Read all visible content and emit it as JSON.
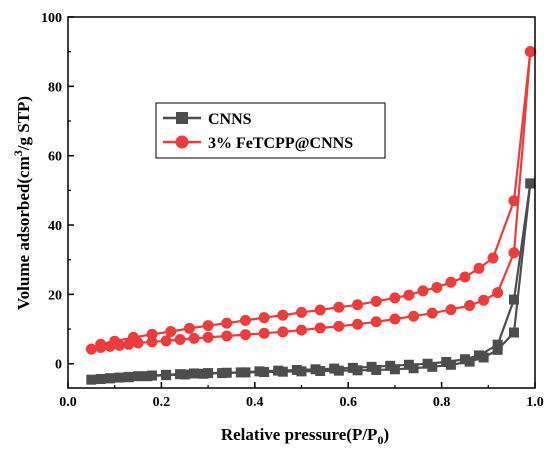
{
  "chart_data": {
    "type": "line",
    "xlabel": "Relative pressure(P/P0)",
    "ylabel": "Volume adsorbed(cm3/g STP)",
    "xlim": [
      0.0,
      1.0
    ],
    "ylim": [
      -7,
      100
    ],
    "x_ticks": [
      "0.0",
      "0.2",
      "0.4",
      "0.6",
      "0.8",
      "1.0"
    ],
    "y_ticks": [
      "0",
      "20",
      "40",
      "60",
      "80",
      "100"
    ],
    "grid": false,
    "legend_position": "upper-left",
    "series": [
      {
        "name": "CNNS",
        "color": "#4d4d4d",
        "marker": "square",
        "adsorption": [
          [
            0.05,
            -4.6
          ],
          [
            0.07,
            -4.4
          ],
          [
            0.09,
            -4.2
          ],
          [
            0.11,
            -4.0
          ],
          [
            0.13,
            -3.8
          ],
          [
            0.15,
            -3.6
          ],
          [
            0.18,
            -3.4
          ],
          [
            0.21,
            -3.2
          ],
          [
            0.24,
            -3.0
          ],
          [
            0.27,
            -2.8
          ],
          [
            0.3,
            -2.7
          ],
          [
            0.34,
            -2.6
          ],
          [
            0.38,
            -2.5
          ],
          [
            0.42,
            -2.4
          ],
          [
            0.46,
            -2.3
          ],
          [
            0.5,
            -2.2
          ],
          [
            0.54,
            -2.1
          ],
          [
            0.58,
            -2.0
          ],
          [
            0.62,
            -1.9
          ],
          [
            0.66,
            -1.8
          ],
          [
            0.7,
            -1.6
          ],
          [
            0.74,
            -1.3
          ],
          [
            0.78,
            -0.9
          ],
          [
            0.82,
            -0.3
          ],
          [
            0.86,
            0.6
          ],
          [
            0.89,
            1.8
          ],
          [
            0.92,
            4.0
          ],
          [
            0.955,
            9.0
          ],
          [
            0.99,
            52.0
          ]
        ],
        "desorption": [
          [
            0.99,
            52.0
          ],
          [
            0.955,
            18.5
          ],
          [
            0.92,
            5.5
          ],
          [
            0.88,
            2.4
          ],
          [
            0.85,
            1.3
          ],
          [
            0.81,
            0.5
          ],
          [
            0.77,
            0.0
          ],
          [
            0.73,
            -0.3
          ],
          [
            0.69,
            -0.6
          ],
          [
            0.65,
            -0.9
          ],
          [
            0.61,
            -1.2
          ],
          [
            0.57,
            -1.4
          ],
          [
            0.53,
            -1.6
          ],
          [
            0.49,
            -1.8
          ],
          [
            0.45,
            -2.0
          ],
          [
            0.41,
            -2.2
          ],
          [
            0.37,
            -2.5
          ],
          [
            0.33,
            -2.7
          ],
          [
            0.29,
            -2.9
          ],
          [
            0.25,
            -3.1
          ],
          [
            0.21,
            -3.3
          ],
          [
            0.17,
            -3.6
          ],
          [
            0.13,
            -3.9
          ],
          [
            0.09,
            -4.2
          ]
        ]
      },
      {
        "name": "3% FeTCPP@CNNS",
        "color": "#ee3b3b",
        "marker": "circle",
        "adsorption": [
          [
            0.05,
            4.2
          ],
          [
            0.07,
            4.7
          ],
          [
            0.09,
            5.0
          ],
          [
            0.11,
            5.3
          ],
          [
            0.13,
            5.6
          ],
          [
            0.15,
            6.0
          ],
          [
            0.18,
            6.3
          ],
          [
            0.21,
            6.6
          ],
          [
            0.24,
            7.0
          ],
          [
            0.27,
            7.3
          ],
          [
            0.3,
            7.6
          ],
          [
            0.34,
            8.0
          ],
          [
            0.38,
            8.4
          ],
          [
            0.42,
            8.8
          ],
          [
            0.46,
            9.2
          ],
          [
            0.5,
            9.7
          ],
          [
            0.54,
            10.3
          ],
          [
            0.58,
            10.8
          ],
          [
            0.62,
            11.4
          ],
          [
            0.66,
            12.1
          ],
          [
            0.7,
            12.9
          ],
          [
            0.74,
            13.7
          ],
          [
            0.78,
            14.6
          ],
          [
            0.82,
            15.6
          ],
          [
            0.86,
            16.8
          ],
          [
            0.89,
            18.3
          ],
          [
            0.92,
            20.5
          ],
          [
            0.955,
            32.0
          ],
          [
            0.99,
            90.0
          ]
        ],
        "desorption": [
          [
            0.99,
            90.0
          ],
          [
            0.955,
            47.0
          ],
          [
            0.91,
            30.5
          ],
          [
            0.88,
            27.5
          ],
          [
            0.85,
            25.0
          ],
          [
            0.82,
            23.5
          ],
          [
            0.79,
            22.0
          ],
          [
            0.76,
            21.0
          ],
          [
            0.73,
            19.8
          ],
          [
            0.7,
            19.0
          ],
          [
            0.66,
            18.0
          ],
          [
            0.62,
            17.0
          ],
          [
            0.58,
            16.3
          ],
          [
            0.54,
            15.5
          ],
          [
            0.5,
            14.8
          ],
          [
            0.46,
            14.0
          ],
          [
            0.42,
            13.3
          ],
          [
            0.38,
            12.5
          ],
          [
            0.34,
            11.7
          ],
          [
            0.3,
            11.0
          ],
          [
            0.26,
            10.2
          ],
          [
            0.22,
            9.3
          ],
          [
            0.18,
            8.5
          ],
          [
            0.14,
            7.6
          ],
          [
            0.1,
            6.5
          ],
          [
            0.07,
            5.6
          ]
        ]
      }
    ]
  }
}
